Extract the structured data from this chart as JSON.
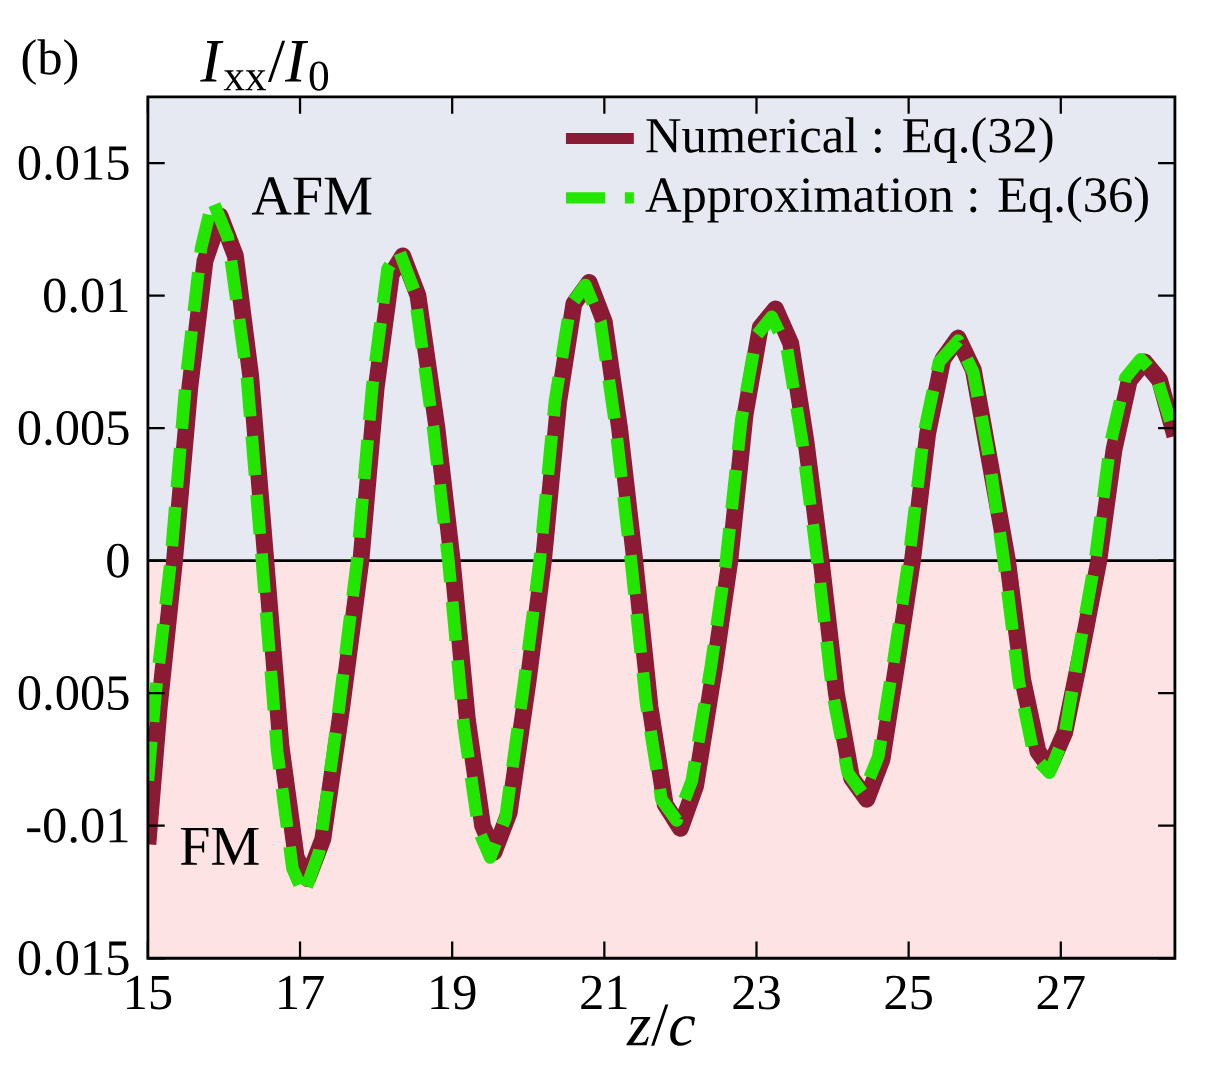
{
  "chart_data": {
    "type": "line",
    "title": "(b)",
    "xlabel": "*z*/*c*",
    "ylabel": "*I*$_{xx}$/*I*$_{0}$",
    "xlim": [
      15,
      28.5
    ],
    "xticks": [
      15,
      17,
      19,
      21,
      23,
      25,
      27
    ],
    "ylim": [
      -0.015,
      0.0175
    ],
    "yticks": [
      {
        "value": -0.015,
        "label": "0.015"
      },
      {
        "value": -0.01,
        "label": "-0.01"
      },
      {
        "value": -0.005,
        "label": "0.005"
      },
      {
        "value": 0,
        "label": "0"
      },
      {
        "value": 0.005,
        "label": "0.005"
      },
      {
        "value": 0.01,
        "label": "0.01"
      },
      {
        "value": 0.015,
        "label": "0.015"
      }
    ],
    "grid": false,
    "legend": "top right",
    "marker": "none",
    "bands": [
      {
        "axis": "y",
        "from": 0,
        "to": 0.0175,
        "color": "#e6e8f2"
      },
      {
        "axis": "y",
        "from": -0.015,
        "to": 0,
        "color": "#fde3e4"
      }
    ],
    "ref_lines": [
      {
        "axis": "y",
        "value": 0,
        "color": "#000000"
      }
    ],
    "annotations": [
      "AFM",
      "FM"
    ],
    "series": [
      {
        "name": "Numerical : Eq.(32)",
        "color": "#8b1a35",
        "line_style": "solid",
        "x": [
          15.0,
          15.15,
          15.35,
          15.55,
          15.75,
          15.95,
          16.15,
          16.35,
          16.55,
          16.75,
          16.95,
          17.1,
          17.3,
          17.55,
          17.8,
          18.0,
          18.2,
          18.35,
          18.55,
          18.8,
          19.0,
          19.2,
          19.4,
          19.55,
          19.75,
          20.0,
          20.2,
          20.4,
          20.6,
          20.8,
          21.0,
          21.2,
          21.4,
          21.6,
          21.8,
          22.0,
          22.2,
          22.45,
          22.65,
          22.85,
          23.05,
          23.25,
          23.45,
          23.65,
          23.85,
          24.05,
          24.25,
          24.45,
          24.65,
          24.85,
          25.05,
          25.25,
          25.45,
          25.65,
          25.85,
          26.05,
          26.3,
          26.5,
          26.7,
          26.85,
          27.05,
          27.3,
          27.5,
          27.7,
          27.9,
          28.1,
          28.3,
          28.5
        ],
        "values": [
          -0.0107,
          -0.0055,
          0,
          0.0065,
          0.0113,
          0.013,
          0.0115,
          0.007,
          0,
          -0.007,
          -0.0112,
          -0.012,
          -0.0105,
          -0.0055,
          0,
          0.0065,
          0.0108,
          0.0115,
          0.01,
          0.005,
          0,
          -0.006,
          -0.01,
          -0.011,
          -0.0095,
          -0.0045,
          0,
          0.006,
          0.0097,
          0.0105,
          0.009,
          0.005,
          0,
          -0.0055,
          -0.0092,
          -0.0101,
          -0.0085,
          -0.004,
          0,
          0.0055,
          0.0088,
          0.0095,
          0.0082,
          0.0045,
          0,
          -0.005,
          -0.0082,
          -0.009,
          -0.0075,
          -0.0038,
          0,
          0.0048,
          0.0076,
          0.0084,
          0.0072,
          0.004,
          0,
          -0.0045,
          -0.0072,
          -0.0078,
          -0.0065,
          -0.003,
          0,
          0.0042,
          0.0068,
          0.0075,
          0.0068,
          0.0047
        ]
      },
      {
        "name": "Approximation : Eq.(36)",
        "color": "#22e600",
        "line_style": "dashed",
        "x": [
          15.0,
          15.1,
          15.3,
          15.5,
          15.7,
          15.85,
          16.05,
          16.3,
          16.5,
          16.7,
          16.9,
          17.05,
          17.25,
          17.5,
          17.75,
          17.95,
          18.15,
          18.3,
          18.5,
          18.75,
          18.95,
          19.15,
          19.35,
          19.5,
          19.7,
          19.95,
          20.15,
          20.35,
          20.55,
          20.75,
          20.95,
          21.15,
          21.35,
          21.55,
          21.75,
          21.95,
          22.15,
          22.4,
          22.6,
          22.8,
          23.0,
          23.2,
          23.4,
          23.6,
          23.8,
          24.0,
          24.2,
          24.4,
          24.6,
          24.8,
          25.0,
          25.2,
          25.4,
          25.65,
          25.85,
          26.05,
          26.25,
          26.45,
          26.65,
          26.85,
          27.05,
          27.25,
          27.45,
          27.65,
          27.85,
          28.05,
          28.25,
          28.5
        ],
        "values": [
          -0.0083,
          -0.005,
          0,
          0.0068,
          0.0118,
          0.0136,
          0.0122,
          0.007,
          0,
          -0.0072,
          -0.0116,
          -0.0126,
          -0.011,
          -0.0058,
          0,
          0.0066,
          0.011,
          0.0117,
          0.0102,
          0.005,
          0,
          -0.0062,
          -0.0102,
          -0.0112,
          -0.0097,
          -0.0045,
          0,
          0.006,
          0.0096,
          0.0104,
          0.009,
          0.005,
          0,
          -0.0054,
          -0.009,
          -0.0098,
          -0.0083,
          -0.004,
          0,
          0.0053,
          0.0085,
          0.0092,
          0.008,
          0.0045,
          0,
          -0.005,
          -0.008,
          -0.0088,
          -0.0074,
          -0.0038,
          0,
          0.0048,
          0.0075,
          0.0083,
          0.0071,
          0.004,
          0,
          -0.0046,
          -0.0074,
          -0.008,
          -0.0066,
          -0.0032,
          0,
          0.0044,
          0.0069,
          0.0076,
          0.007,
          0.0047
        ]
      }
    ]
  }
}
